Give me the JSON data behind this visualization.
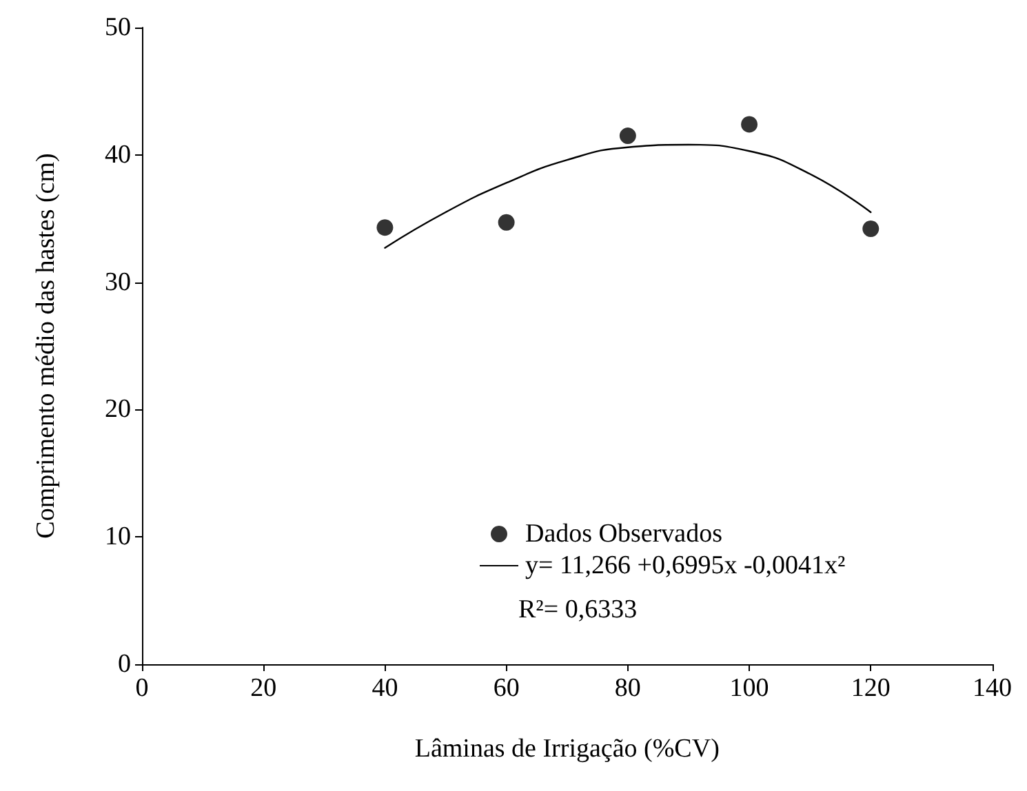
{
  "chart_data": {
    "type": "scatter",
    "xlabel": "Lâminas de Irrigação (%CV)",
    "ylabel": "Comprimento médio das hastes (cm)",
    "xlim": [
      0,
      140
    ],
    "xticks": [
      0,
      20,
      40,
      60,
      80,
      100,
      120,
      140
    ],
    "ylim": [
      0,
      50
    ],
    "yticks": [
      0,
      10,
      20,
      30,
      40,
      50
    ],
    "grid": false,
    "legend": "bottom",
    "series": [
      {
        "name": "Dados Observados",
        "marker": "circle",
        "color": "#000000",
        "x": [
          40,
          60,
          80,
          100,
          120
        ],
        "values": [
          34.3,
          34.7,
          41.5,
          42.4,
          34.2
        ]
      },
      {
        "name": "y= 11,266 +0,6995x -0,0041x²",
        "type": "line",
        "marker": "none",
        "color": "#000000",
        "x": [
          40,
          50,
          60,
          70,
          80,
          90,
          100,
          110,
          120
        ],
        "values": [
          32.7,
          35.5,
          37.8,
          39.6,
          40.6,
          40.8,
          40.3,
          38.5,
          35.5
        ]
      }
    ],
    "annotations": [
      "R²= 0,6333"
    ]
  }
}
